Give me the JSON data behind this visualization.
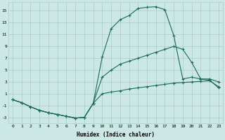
{
  "xlabel": "Humidex (Indice chaleur)",
  "bg_color": "#cce8e5",
  "line_color": "#1a6b5a",
  "grid_color": "#aaccca",
  "xlim": [
    -0.5,
    23.5
  ],
  "ylim": [
    -4,
    16.5
  ],
  "xticks": [
    0,
    1,
    2,
    3,
    4,
    5,
    6,
    7,
    8,
    9,
    10,
    11,
    12,
    13,
    14,
    15,
    16,
    17,
    18,
    19,
    20,
    21,
    22,
    23
  ],
  "yticks": [
    -3,
    -1,
    1,
    3,
    5,
    7,
    9,
    11,
    13,
    15
  ],
  "series1_x": [
    0,
    1,
    2,
    3,
    4,
    5,
    6,
    7,
    8,
    9,
    10,
    11,
    12,
    13,
    14,
    15,
    16,
    17,
    18,
    19,
    20,
    21,
    22,
    23
  ],
  "series1_y": [
    0.0,
    -0.5,
    -1.2,
    -1.8,
    -2.2,
    -2.5,
    -2.8,
    -3.1,
    -3.0,
    -0.6,
    7.2,
    12.0,
    13.5,
    14.2,
    15.4,
    15.6,
    15.7,
    15.2,
    10.8,
    3.5,
    3.8,
    3.5,
    3.3,
    2.0
  ],
  "series2_x": [
    0,
    1,
    2,
    3,
    4,
    5,
    6,
    7,
    8,
    9,
    10,
    11,
    12,
    13,
    14,
    15,
    16,
    17,
    18,
    19,
    20,
    21,
    22,
    23
  ],
  "series2_y": [
    0.0,
    -0.5,
    -1.2,
    -1.8,
    -2.2,
    -2.5,
    -2.8,
    -3.1,
    -3.0,
    -0.6,
    3.8,
    5.0,
    6.0,
    6.5,
    7.0,
    7.5,
    8.0,
    8.5,
    9.0,
    8.5,
    6.3,
    3.5,
    3.5,
    3.0
  ],
  "series3_x": [
    0,
    1,
    2,
    3,
    4,
    5,
    6,
    7,
    8,
    9,
    10,
    11,
    12,
    13,
    14,
    15,
    16,
    17,
    18,
    19,
    20,
    21,
    22,
    23
  ],
  "series3_y": [
    0.0,
    -0.5,
    -1.2,
    -1.8,
    -2.2,
    -2.5,
    -2.8,
    -3.1,
    -3.0,
    -0.6,
    1.0,
    1.3,
    1.5,
    1.8,
    2.0,
    2.2,
    2.4,
    2.6,
    2.8,
    2.9,
    3.0,
    3.1,
    3.2,
    2.2
  ]
}
